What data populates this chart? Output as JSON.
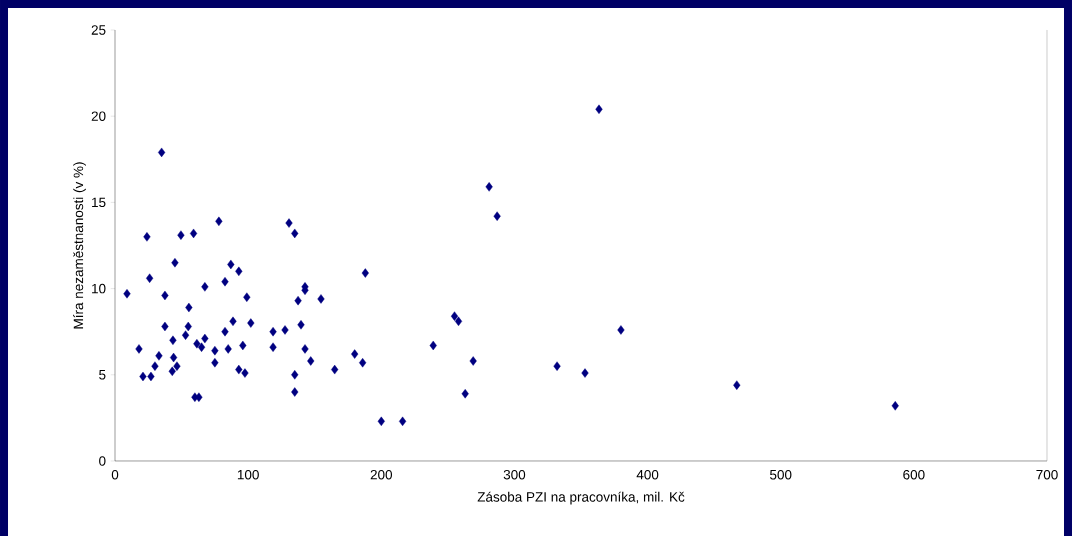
{
  "chart_data": {
    "type": "scatter",
    "xlabel": "Zásoba PZI na pracovníka, mil. Kč",
    "ylabel": "Míra nezaměstnanosti (v %)",
    "xlim": [
      0,
      700
    ],
    "ylim": [
      0,
      25
    ],
    "xticks": [
      0,
      100,
      200,
      300,
      400,
      500,
      600,
      700
    ],
    "yticks": [
      0,
      5,
      10,
      15,
      20,
      25
    ],
    "grid": false,
    "marker": "diamond",
    "series": [
      {
        "color": "#000080",
        "x": [
          9,
          18,
          21,
          24,
          26,
          27,
          30,
          33,
          35,
          37.5,
          37.5,
          43.5,
          43,
          44,
          45,
          46.5,
          49.5,
          53,
          55,
          55.5,
          59,
          60,
          63,
          61.5,
          65,
          67.5,
          67.5,
          75,
          75,
          78,
          82.6,
          82.6,
          85,
          87,
          88.6,
          93,
          93,
          96,
          97.6,
          99,
          102,
          118.7,
          118.7,
          127.7,
          130.7,
          135,
          135,
          135,
          137.5,
          139.7,
          142.7,
          142.7,
          142.7,
          147,
          154.7,
          165,
          180,
          186,
          188,
          200,
          216,
          239,
          255,
          258,
          263,
          269,
          281,
          287,
          332,
          353,
          363.5,
          380,
          467,
          586
        ],
        "values": [
          9.7,
          6.5,
          4.9,
          13.0,
          10.6,
          4.9,
          5.5,
          6.1,
          17.9,
          9.6,
          7.8,
          7.0,
          5.2,
          6.0,
          11.5,
          5.5,
          13.1,
          7.3,
          7.8,
          8.9,
          13.2,
          3.7,
          3.7,
          6.8,
          6.6,
          7.1,
          10.1,
          6.4,
          5.7,
          13.9,
          7.5,
          10.4,
          6.5,
          11.4,
          8.1,
          11.0,
          5.3,
          6.7,
          5.1,
          9.5,
          8.0,
          7.5,
          6.6,
          7.6,
          13.8,
          13.2,
          5.0,
          4.0,
          9.3,
          7.9,
          10.1,
          9.9,
          6.5,
          5.8,
          9.4,
          5.3,
          6.2,
          5.7,
          10.9,
          2.3,
          2.3,
          6.7,
          8.4,
          8.1,
          3.9,
          5.8,
          15.9,
          14.2,
          5.5,
          5.1,
          20.4,
          7.6,
          4.4,
          3.2
        ]
      }
    ]
  }
}
